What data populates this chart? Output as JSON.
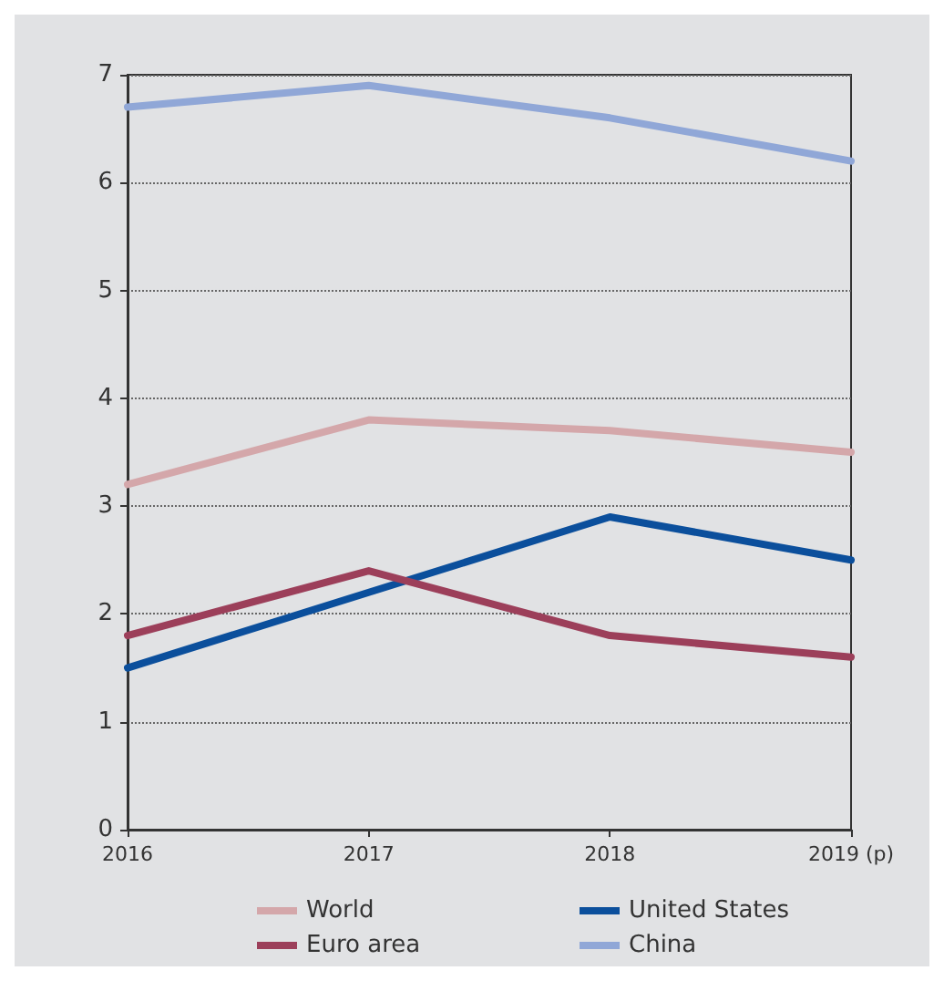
{
  "chart_data": {
    "type": "line",
    "categories": [
      "2016",
      "2017",
      "2018",
      "2019 (p)"
    ],
    "series": [
      {
        "name": "World",
        "color": "#d4a7aa",
        "values": [
          3.2,
          3.8,
          3.7,
          3.5
        ]
      },
      {
        "name": "United States",
        "color": "#0b4f9c",
        "values": [
          1.5,
          2.2,
          2.9,
          2.5
        ]
      },
      {
        "name": "Euro area",
        "color": "#9c3f5a",
        "values": [
          1.8,
          2.4,
          1.8,
          1.6
        ]
      },
      {
        "name": "China",
        "color": "#90a7d7",
        "values": [
          6.7,
          6.9,
          6.6,
          6.2
        ]
      }
    ],
    "ylim": [
      0,
      7
    ],
    "yticks": [
      0,
      1,
      2,
      3,
      4,
      5,
      6,
      7
    ],
    "grid": "y",
    "legend": "bottom",
    "marker": "none",
    "line_style": "solid"
  }
}
